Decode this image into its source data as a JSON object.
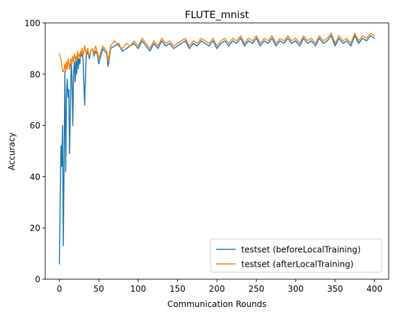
{
  "chart_data": {
    "type": "line",
    "title": "FLUTE_mnist",
    "xlabel": "Communication Rounds",
    "ylabel": "Accuracy",
    "xlim": [
      -18,
      418
    ],
    "ylim": [
      0,
      100
    ],
    "xticks": [
      0,
      50,
      100,
      150,
      200,
      250,
      300,
      350,
      400
    ],
    "yticks": [
      0,
      20,
      40,
      60,
      80,
      100
    ],
    "legend_position": "lower-right",
    "series": [
      {
        "name": "testset (beforeLocalTraining)",
        "color": "#1f77b4",
        "x": [
          0,
          1,
          2,
          3,
          4,
          5,
          6,
          7,
          8,
          9,
          10,
          11,
          12,
          13,
          14,
          15,
          16,
          17,
          18,
          19,
          20,
          21,
          22,
          23,
          24,
          25,
          26,
          27,
          28,
          29,
          30,
          32,
          34,
          36,
          38,
          40,
          42,
          44,
          46,
          48,
          50,
          55,
          60,
          62,
          65,
          70,
          75,
          80,
          85,
          90,
          95,
          100,
          105,
          110,
          115,
          120,
          125,
          130,
          135,
          140,
          145,
          150,
          155,
          160,
          165,
          170,
          175,
          180,
          185,
          190,
          195,
          200,
          205,
          210,
          215,
          220,
          225,
          230,
          235,
          240,
          245,
          250,
          255,
          260,
          265,
          270,
          275,
          280,
          285,
          290,
          295,
          300,
          305,
          310,
          315,
          320,
          325,
          330,
          335,
          340,
          345,
          350,
          355,
          360,
          365,
          370,
          375,
          380,
          385,
          390,
          395,
          400
        ],
        "values": [
          6,
          30,
          52,
          44,
          60,
          13,
          47,
          81,
          42,
          72,
          78,
          71,
          74,
          49,
          68,
          84,
          79,
          60,
          80,
          85,
          77,
          86,
          80,
          88,
          82,
          86,
          84,
          89,
          87,
          88,
          86,
          68,
          87,
          89,
          86,
          89,
          90,
          87,
          89,
          88,
          84,
          90,
          88,
          83,
          90,
          91,
          92,
          89,
          90,
          91,
          92,
          90,
          93,
          91,
          89,
          92,
          90,
          93,
          91,
          92,
          90,
          91,
          92,
          93,
          90,
          92,
          91,
          93,
          92,
          91,
          93,
          90,
          92,
          93,
          91,
          93,
          92,
          94,
          91,
          93,
          92,
          94,
          91,
          93,
          92,
          94,
          91,
          93,
          92,
          94,
          92,
          93,
          91,
          94,
          92,
          93,
          91,
          94,
          92,
          93,
          95,
          91,
          94,
          92,
          93,
          91,
          95,
          92,
          94,
          93,
          95,
          94
        ]
      },
      {
        "name": "testset (afterLocalTraining)",
        "color": "#ff7f0e",
        "x": [
          0,
          1,
          2,
          3,
          4,
          5,
          6,
          7,
          8,
          9,
          10,
          11,
          12,
          13,
          14,
          15,
          16,
          17,
          18,
          19,
          20,
          21,
          22,
          23,
          24,
          25,
          26,
          27,
          28,
          29,
          30,
          32,
          34,
          36,
          38,
          40,
          42,
          44,
          46,
          48,
          50,
          55,
          60,
          62,
          65,
          70,
          75,
          80,
          85,
          90,
          95,
          100,
          105,
          110,
          115,
          120,
          125,
          130,
          135,
          140,
          145,
          150,
          155,
          160,
          165,
          170,
          175,
          180,
          185,
          190,
          195,
          200,
          205,
          210,
          215,
          220,
          225,
          230,
          235,
          240,
          245,
          250,
          255,
          260,
          265,
          270,
          275,
          280,
          285,
          290,
          295,
          300,
          305,
          310,
          315,
          320,
          325,
          330,
          335,
          340,
          345,
          350,
          355,
          360,
          365,
          370,
          375,
          380,
          385,
          390,
          395,
          400
        ],
        "values": [
          88,
          87,
          86,
          83,
          81,
          81,
          82,
          84,
          81,
          85,
          82,
          86,
          84,
          82,
          85,
          86,
          84,
          87,
          85,
          88,
          86,
          87,
          85,
          89,
          87,
          88,
          86,
          89,
          88,
          90,
          87,
          91,
          88,
          90,
          87,
          89,
          90,
          88,
          91,
          89,
          86,
          91,
          89,
          85,
          91,
          93,
          91,
          90,
          92,
          91,
          93,
          91,
          94,
          92,
          90,
          93,
          91,
          94,
          92,
          93,
          91,
          92,
          93,
          94,
          91,
          93,
          92,
          94,
          93,
          92,
          94,
          91,
          93,
          94,
          92,
          94,
          93,
          95,
          92,
          94,
          93,
          95,
          92,
          94,
          93,
          95,
          92,
          94,
          93,
          95,
          93,
          94,
          92,
          95,
          93,
          94,
          92,
          95,
          93,
          94,
          96,
          92,
          95,
          93,
          94,
          92,
          96,
          93,
          95,
          94,
          96,
          95
        ]
      }
    ]
  }
}
